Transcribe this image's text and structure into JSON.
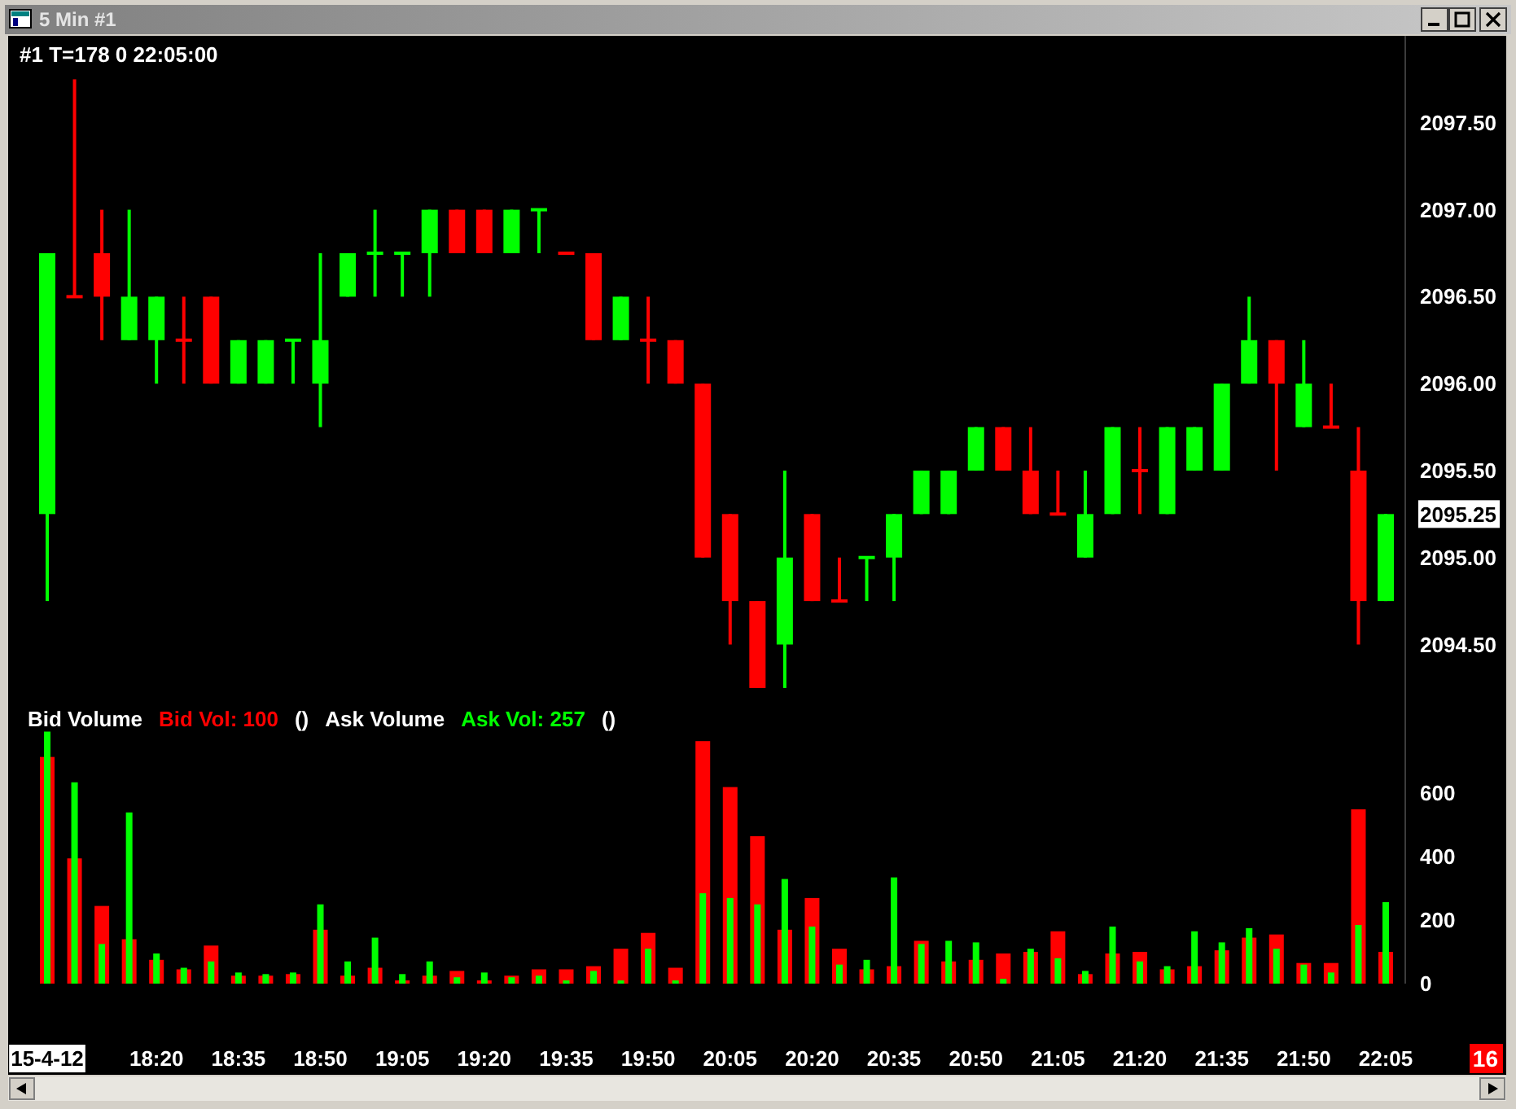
{
  "chart_data": {
    "type": "candlestick",
    "title": "5 Min #1",
    "categories": [
      "15-4-12",
      null,
      null,
      null,
      "18:20",
      null,
      null,
      "18:35",
      null,
      null,
      "18:50",
      null,
      null,
      "19:05",
      null,
      null,
      "19:20",
      null,
      null,
      "19:35",
      null,
      null,
      "19:50",
      null,
      null,
      "20:05",
      null,
      null,
      "20:20",
      null,
      null,
      "20:35",
      null,
      null,
      "20:50",
      null,
      null,
      "21:05",
      null,
      null,
      "21:20",
      null,
      null,
      "21:35",
      null,
      null,
      "21:50",
      null,
      null,
      "22:05"
    ],
    "ohlc": [
      [
        2095.25,
        2096.75,
        2094.75,
        2096.75
      ],
      [
        2096.5,
        2097.75,
        2096.5,
        2096.5
      ],
      [
        2096.75,
        2097.0,
        2096.25,
        2096.5
      ],
      [
        2096.25,
        2097.0,
        2096.25,
        2096.5
      ],
      [
        2096.25,
        2096.5,
        2096.0,
        2096.5
      ],
      [
        2096.25,
        2096.5,
        2096.0,
        2096.25
      ],
      [
        2096.5,
        2096.5,
        2096.0,
        2096.0
      ],
      [
        2096.0,
        2096.25,
        2096.0,
        2096.25
      ],
      [
        2096.0,
        2096.25,
        2096.0,
        2096.25
      ],
      [
        2096.25,
        2096.25,
        2096.0,
        2096.25
      ],
      [
        2096.0,
        2096.75,
        2095.75,
        2096.25
      ],
      [
        2096.5,
        2096.75,
        2096.5,
        2096.75
      ],
      [
        2096.75,
        2097.0,
        2096.5,
        2096.75
      ],
      [
        2096.75,
        2096.75,
        2096.5,
        2096.75
      ],
      [
        2096.75,
        2097.0,
        2096.5,
        2097.0
      ],
      [
        2097.0,
        2097.0,
        2096.75,
        2096.75
      ],
      [
        2097.0,
        2097.0,
        2096.75,
        2096.75
      ],
      [
        2096.75,
        2097.0,
        2096.75,
        2097.0
      ],
      [
        2097.0,
        2097.0,
        2096.75,
        2097.0
      ],
      [
        2096.75,
        2096.75,
        2096.75,
        2096.75
      ],
      [
        2096.75,
        2096.75,
        2096.25,
        2096.25
      ],
      [
        2096.25,
        2096.5,
        2096.25,
        2096.5
      ],
      [
        2096.25,
        2096.5,
        2096.0,
        2096.25
      ],
      [
        2096.25,
        2096.25,
        2096.0,
        2096.0
      ],
      [
        2096.0,
        2096.0,
        2095.0,
        2095.0
      ],
      [
        2095.25,
        2095.25,
        2094.5,
        2094.75
      ],
      [
        2094.75,
        2094.75,
        2094.25,
        2094.25
      ],
      [
        2094.5,
        2095.5,
        2094.25,
        2095.0
      ],
      [
        2095.25,
        2095.25,
        2094.75,
        2094.75
      ],
      [
        2094.75,
        2095.0,
        2094.75,
        2094.75
      ],
      [
        2095.0,
        2095.0,
        2094.75,
        2095.0
      ],
      [
        2095.0,
        2095.25,
        2094.75,
        2095.25
      ],
      [
        2095.25,
        2095.5,
        2095.25,
        2095.5
      ],
      [
        2095.25,
        2095.5,
        2095.25,
        2095.5
      ],
      [
        2095.5,
        2095.75,
        2095.5,
        2095.75
      ],
      [
        2095.75,
        2095.75,
        2095.5,
        2095.5
      ],
      [
        2095.5,
        2095.75,
        2095.25,
        2095.25
      ],
      [
        2095.25,
        2095.5,
        2095.25,
        2095.25
      ],
      [
        2095.0,
        2095.5,
        2095.0,
        2095.25
      ],
      [
        2095.25,
        2095.75,
        2095.25,
        2095.75
      ],
      [
        2095.5,
        2095.75,
        2095.25,
        2095.5
      ],
      [
        2095.25,
        2095.75,
        2095.25,
        2095.75
      ],
      [
        2095.5,
        2095.75,
        2095.5,
        2095.75
      ],
      [
        2095.5,
        2096.0,
        2095.5,
        2096.0
      ],
      [
        2096.0,
        2096.5,
        2096.0,
        2096.25
      ],
      [
        2096.25,
        2096.25,
        2095.5,
        2096.0
      ],
      [
        2095.75,
        2096.25,
        2095.75,
        2096.0
      ],
      [
        2095.75,
        2096.0,
        2095.75,
        2095.75
      ],
      [
        2095.5,
        2095.75,
        2094.5,
        2094.75
      ],
      [
        2094.75,
        2095.25,
        2094.75,
        2095.25
      ]
    ],
    "colors": [
      "#00ff00",
      "#ff0000",
      "#ff0000",
      "#00ff00",
      "#00ff00",
      "#ff0000",
      "#ff0000",
      "#00ff00",
      "#00ff00",
      "#00ff00",
      "#00ff00",
      "#00ff00",
      "#00ff00",
      "#00ff00",
      "#00ff00",
      "#ff0000",
      "#ff0000",
      "#00ff00",
      "#00ff00",
      "#ff0000",
      "#ff0000",
      "#00ff00",
      "#ff0000",
      "#ff0000",
      "#ff0000",
      "#ff0000",
      "#ff0000",
      "#00ff00",
      "#ff0000",
      "#ff0000",
      "#00ff00",
      "#00ff00",
      "#00ff00",
      "#00ff00",
      "#00ff00",
      "#ff0000",
      "#ff0000",
      "#ff0000",
      "#00ff00",
      "#00ff00",
      "#ff0000",
      "#00ff00",
      "#00ff00",
      "#00ff00",
      "#00ff00",
      "#ff0000",
      "#00ff00",
      "#ff0000",
      "#ff0000",
      "#00ff00"
    ],
    "ylim": [
      2092.55,
      2098
    ],
    "yticks": [
      {
        "value": 2094.5,
        "label": "2094.50"
      },
      {
        "value": 2095,
        "label": "2095.00"
      },
      {
        "value": 2095.5,
        "label": "2095.50"
      },
      {
        "value": 2096,
        "label": "2096.00"
      },
      {
        "value": 2096.5,
        "label": "2096.50"
      },
      {
        "value": 2097,
        "label": "2097.00"
      },
      {
        "value": 2097.5,
        "label": "2097.50"
      }
    ],
    "y2lim": [
      0,
      2990
    ],
    "y2ticks": [
      0,
      200,
      400,
      600
    ],
    "series": [
      {
        "type": "bar",
        "axis": "y2",
        "color": "#ff0000",
        "values": [
          715,
          395,
          245,
          140,
          75,
          45,
          120,
          25,
          25,
          30,
          170,
          25,
          50,
          10,
          25,
          40,
          10,
          25,
          45,
          45,
          55,
          110,
          160,
          50,
          765,
          620,
          465,
          170,
          270,
          110,
          45,
          55,
          135,
          70,
          75,
          95,
          100,
          165,
          30,
          95,
          100,
          45,
          55,
          105,
          145,
          155,
          65,
          65,
          550,
          100
        ]
      },
      {
        "type": "bar",
        "axis": "y2",
        "color": "#00ff00",
        "values": [
          795,
          635,
          125,
          540,
          95,
          50,
          70,
          35,
          30,
          35,
          250,
          70,
          145,
          30,
          70,
          20,
          35,
          20,
          25,
          10,
          40,
          10,
          110,
          10,
          285,
          270,
          250,
          330,
          180,
          60,
          75,
          335,
          125,
          135,
          130,
          15,
          110,
          80,
          40,
          180,
          70,
          55,
          165,
          130,
          175,
          110,
          60,
          35,
          185,
          257
        ]
      }
    ],
    "annotations": [
      "#1 T=178 0 22:05:00",
      "2095.25",
      "Bid Volume",
      "Bid Vol: 100",
      "()",
      "Ask Volume",
      "Ask Vol: 257",
      "()",
      "16"
    ]
  }
}
